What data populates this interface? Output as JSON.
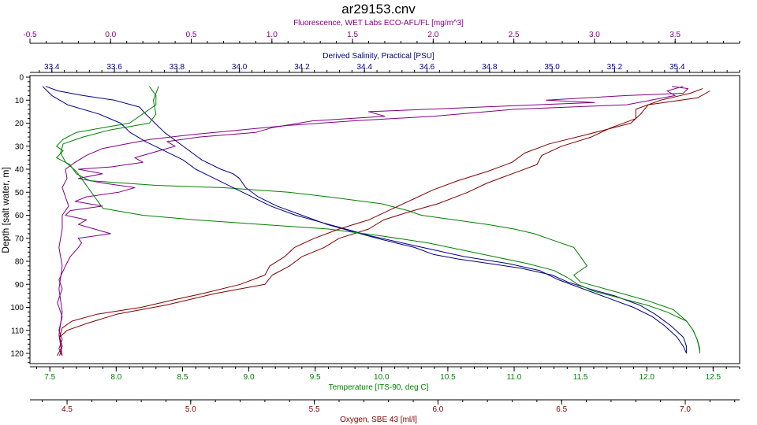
{
  "chart_data": {
    "type": "line",
    "title": "ar29153.cnv",
    "plot_frame": true,
    "depth_axis": {
      "label": "Depth [salt water, m]",
      "range": [
        0,
        125
      ],
      "inverted": true,
      "ticks": [
        0,
        10,
        20,
        30,
        40,
        50,
        60,
        70,
        80,
        90,
        100,
        110,
        120
      ],
      "color": "#000000"
    },
    "axes": [
      {
        "id": "fluorescence",
        "label": "Fluorescence, WET Labs ECO-AFL/FL [mg/m^3]",
        "position": "top-outer",
        "range": [
          -0.5,
          3.9
        ],
        "ticks": [
          -0.5,
          0.0,
          0.5,
          1.0,
          1.5,
          2.0,
          2.5,
          3.0,
          3.5
        ],
        "tick_labels": [
          "-0.5",
          "0.0",
          "0.5",
          "1.0",
          "1.5",
          "2.0",
          "2.5",
          "3.0",
          "3.5"
        ],
        "color": "#800080"
      },
      {
        "id": "salinity",
        "label": "Derived Salinity, Practical [PSU]",
        "position": "top-inner",
        "range": [
          33.33,
          35.6
        ],
        "ticks": [
          33.4,
          33.6,
          33.8,
          34.0,
          34.2,
          34.4,
          34.6,
          34.8,
          35.0,
          35.2,
          35.4
        ],
        "tick_labels": [
          "33.4",
          "33.6",
          "33.8",
          "34.0",
          "34.2",
          "34.4",
          "34.6",
          "34.8",
          "35.0",
          "35.2",
          "35.4"
        ],
        "color": "#000080"
      },
      {
        "id": "temperature",
        "label": "Temperature [ITS-90, deg C]",
        "position": "bottom-inner",
        "range": [
          7.35,
          12.7
        ],
        "ticks": [
          7.5,
          8.0,
          8.5,
          9.0,
          9.5,
          10.0,
          10.5,
          11.0,
          11.5,
          12.0,
          12.5
        ],
        "tick_labels": [
          "7.5",
          "8.0",
          "8.5",
          "9.0",
          "9.5",
          "10.0",
          "10.5",
          "11.0",
          "11.5",
          "12.0",
          "12.5"
        ],
        "color": "#008000"
      },
      {
        "id": "oxygen",
        "label": "Oxygen, SBE 43 [ml/l]",
        "position": "bottom-outer",
        "range": [
          4.35,
          7.22
        ],
        "ticks": [
          4.5,
          5.0,
          5.5,
          6.0,
          6.5,
          7.0
        ],
        "tick_labels": [
          "4.5",
          "5.0",
          "5.5",
          "6.0",
          "6.5",
          "7.0"
        ],
        "color": "#800000"
      }
    ],
    "series": [
      {
        "axis": "fluorescence",
        "color": "#800080",
        "points": [
          [
            3.48,
            4
          ],
          [
            3.58,
            5
          ],
          [
            3.55,
            7
          ],
          [
            3.2,
            8
          ],
          [
            2.7,
            10
          ],
          [
            3.0,
            11
          ],
          [
            2.3,
            13
          ],
          [
            1.6,
            15
          ],
          [
            1.7,
            17
          ],
          [
            1.25,
            19
          ],
          [
            1.0,
            22
          ],
          [
            0.9,
            24
          ],
          [
            0.55,
            26
          ],
          [
            0.35,
            28
          ],
          [
            0.4,
            30
          ],
          [
            0.3,
            32
          ],
          [
            0.15,
            35
          ],
          [
            0.2,
            37
          ],
          [
            0.0,
            39
          ],
          [
            -0.2,
            40
          ],
          [
            -0.05,
            42
          ],
          [
            -0.2,
            44
          ],
          [
            -0.05,
            46
          ],
          [
            0.15,
            48
          ],
          [
            0.05,
            50
          ],
          [
            -0.15,
            52
          ],
          [
            -0.22,
            54
          ],
          [
            -0.05,
            56
          ],
          [
            -0.25,
            58
          ],
          [
            -0.28,
            60
          ],
          [
            -0.15,
            62
          ],
          [
            -0.2,
            64
          ],
          [
            -0.1,
            66
          ],
          [
            0.0,
            68
          ],
          [
            -0.2,
            70
          ],
          [
            -0.18,
            72
          ],
          [
            -0.2,
            74
          ],
          [
            -0.25,
            78
          ],
          [
            -0.28,
            82
          ],
          [
            -0.32,
            88
          ],
          [
            -0.3,
            92
          ],
          [
            -0.33,
            98
          ],
          [
            -0.3,
            104
          ],
          [
            -0.32,
            110
          ],
          [
            -0.3,
            114
          ],
          [
            -0.32,
            118
          ],
          [
            -0.3,
            121
          ]
        ]
      },
      {
        "axis": "salinity",
        "color": "#000080",
        "points": [
          [
            33.38,
            4
          ],
          [
            33.42,
            6
          ],
          [
            33.5,
            8
          ],
          [
            33.6,
            10
          ],
          [
            33.68,
            13
          ],
          [
            33.7,
            16
          ],
          [
            33.73,
            20
          ],
          [
            33.76,
            24
          ],
          [
            33.8,
            28
          ],
          [
            33.84,
            32
          ],
          [
            33.88,
            36
          ],
          [
            33.94,
            40
          ],
          [
            33.98,
            42
          ],
          [
            34.0,
            44
          ],
          [
            34.02,
            48
          ],
          [
            34.06,
            52
          ],
          [
            34.12,
            56
          ],
          [
            34.2,
            60
          ],
          [
            34.28,
            64
          ],
          [
            34.36,
            67
          ],
          [
            34.44,
            70
          ],
          [
            34.5,
            72
          ],
          [
            34.56,
            74
          ],
          [
            34.62,
            77
          ],
          [
            34.7,
            79
          ],
          [
            34.8,
            81
          ],
          [
            34.9,
            83
          ],
          [
            35.0,
            86
          ],
          [
            35.05,
            89
          ],
          [
            35.12,
            92
          ],
          [
            35.2,
            95
          ],
          [
            35.28,
            99
          ],
          [
            35.33,
            103
          ],
          [
            35.38,
            108
          ],
          [
            35.42,
            113
          ],
          [
            35.43,
            117
          ],
          [
            35.43,
            120
          ]
        ]
      },
      {
        "axis": "temperature",
        "color": "#008000",
        "points": [
          [
            8.25,
            4
          ],
          [
            8.3,
            8
          ],
          [
            8.3,
            12
          ],
          [
            8.2,
            16
          ],
          [
            8.1,
            20
          ],
          [
            7.9,
            22
          ],
          [
            7.7,
            24
          ],
          [
            7.6,
            27
          ],
          [
            7.55,
            30
          ],
          [
            7.6,
            32
          ],
          [
            7.55,
            35
          ],
          [
            7.65,
            38
          ],
          [
            7.7,
            42
          ],
          [
            7.8,
            45
          ],
          [
            8.3,
            47
          ],
          [
            8.8,
            48
          ],
          [
            9.3,
            50
          ],
          [
            9.6,
            52
          ],
          [
            10.0,
            55
          ],
          [
            10.2,
            58
          ],
          [
            10.3,
            60
          ],
          [
            10.55,
            62
          ],
          [
            10.8,
            64
          ],
          [
            11.0,
            66
          ],
          [
            11.15,
            68
          ],
          [
            11.3,
            71
          ],
          [
            11.45,
            74
          ],
          [
            11.5,
            78
          ],
          [
            11.55,
            82
          ],
          [
            11.45,
            86
          ],
          [
            11.5,
            89
          ],
          [
            11.75,
            93
          ],
          [
            12.0,
            97
          ],
          [
            12.2,
            101
          ],
          [
            12.3,
            106
          ],
          [
            12.35,
            110
          ],
          [
            12.38,
            114
          ],
          [
            12.4,
            118
          ],
          [
            12.4,
            120
          ]
        ]
      },
      {
        "axis": "oxygen",
        "color": "#800000",
        "points": [
          [
            7.07,
            5
          ],
          [
            7.02,
            7
          ],
          [
            6.9,
            10
          ],
          [
            6.8,
            14
          ],
          [
            6.8,
            18
          ],
          [
            6.7,
            22
          ],
          [
            6.62,
            26
          ],
          [
            6.5,
            30
          ],
          [
            6.42,
            34
          ],
          [
            6.4,
            38
          ],
          [
            6.3,
            42
          ],
          [
            6.2,
            46
          ],
          [
            6.12,
            50
          ],
          [
            6.0,
            55
          ],
          [
            5.9,
            58
          ],
          [
            5.78,
            62
          ],
          [
            5.72,
            66
          ],
          [
            5.6,
            70
          ],
          [
            5.54,
            74
          ],
          [
            5.45,
            78
          ],
          [
            5.4,
            82
          ],
          [
            5.33,
            86
          ],
          [
            5.3,
            90
          ],
          [
            5.1,
            94
          ],
          [
            4.9,
            99
          ],
          [
            4.7,
            103
          ],
          [
            4.58,
            107
          ],
          [
            4.5,
            110
          ],
          [
            4.47,
            113
          ],
          [
            4.48,
            117
          ],
          [
            4.47,
            121
          ]
        ]
      },
      {
        "axis": "fluorescence",
        "color": "#800080",
        "points": [
          [
            3.55,
            4
          ],
          [
            3.45,
            6
          ],
          [
            3.5,
            8
          ],
          [
            3.35,
            10
          ],
          [
            3.2,
            12
          ],
          [
            2.5,
            14
          ],
          [
            2.0,
            17
          ],
          [
            1.5,
            19
          ],
          [
            1.1,
            21
          ],
          [
            0.8,
            23
          ],
          [
            0.5,
            25
          ],
          [
            0.25,
            27
          ],
          [
            0.1,
            29
          ],
          [
            -0.05,
            31
          ],
          [
            -0.15,
            34
          ],
          [
            -0.22,
            37
          ],
          [
            -0.28,
            40
          ],
          [
            -0.27,
            44
          ],
          [
            -0.3,
            48
          ],
          [
            -0.28,
            52
          ],
          [
            -0.26,
            56
          ],
          [
            -0.3,
            60
          ],
          [
            -0.3,
            66
          ],
          [
            -0.32,
            74
          ],
          [
            -0.3,
            82
          ],
          [
            -0.32,
            92
          ],
          [
            -0.3,
            102
          ],
          [
            -0.32,
            112
          ],
          [
            -0.3,
            121
          ]
        ]
      },
      {
        "axis": "salinity",
        "color": "#000080",
        "points": [
          [
            33.37,
            4
          ],
          [
            33.4,
            8
          ],
          [
            33.45,
            12
          ],
          [
            33.55,
            16
          ],
          [
            33.62,
            20
          ],
          [
            33.65,
            24
          ],
          [
            33.7,
            28
          ],
          [
            33.76,
            32
          ],
          [
            33.82,
            36
          ],
          [
            33.86,
            40
          ],
          [
            33.92,
            44
          ],
          [
            33.98,
            48
          ],
          [
            34.04,
            52
          ],
          [
            34.1,
            56
          ],
          [
            34.18,
            60
          ],
          [
            34.26,
            63
          ],
          [
            34.34,
            66
          ],
          [
            34.42,
            69
          ],
          [
            34.52,
            72
          ],
          [
            34.62,
            75
          ],
          [
            34.72,
            78
          ],
          [
            34.86,
            81
          ],
          [
            34.96,
            84
          ],
          [
            35.02,
            88
          ],
          [
            35.1,
            92
          ],
          [
            35.18,
            96
          ],
          [
            35.26,
            100
          ],
          [
            35.32,
            104
          ],
          [
            35.36,
            108
          ],
          [
            35.4,
            113
          ],
          [
            35.42,
            117
          ],
          [
            35.43,
            120
          ]
        ]
      },
      {
        "axis": "temperature",
        "color": "#008000",
        "points": [
          [
            8.32,
            4
          ],
          [
            8.28,
            10
          ],
          [
            8.3,
            16
          ],
          [
            8.25,
            20
          ],
          [
            7.95,
            23
          ],
          [
            7.75,
            26
          ],
          [
            7.6,
            29
          ],
          [
            7.58,
            33
          ],
          [
            7.62,
            37
          ],
          [
            7.7,
            41
          ],
          [
            7.75,
            45
          ],
          [
            7.8,
            49
          ],
          [
            7.85,
            53
          ],
          [
            7.9,
            57
          ],
          [
            8.2,
            60
          ],
          [
            8.6,
            62
          ],
          [
            9.1,
            64
          ],
          [
            9.6,
            66
          ],
          [
            10.0,
            69
          ],
          [
            10.35,
            72
          ],
          [
            10.6,
            75
          ],
          [
            10.85,
            78
          ],
          [
            11.1,
            81
          ],
          [
            11.3,
            84
          ],
          [
            11.4,
            87
          ],
          [
            11.48,
            90
          ],
          [
            11.6,
            93
          ],
          [
            11.8,
            96
          ],
          [
            12.0,
            99
          ],
          [
            12.15,
            102
          ],
          [
            12.3,
            106
          ],
          [
            12.35,
            110
          ],
          [
            12.38,
            114
          ],
          [
            12.4,
            119
          ]
        ]
      },
      {
        "axis": "oxygen",
        "color": "#800000",
        "points": [
          [
            7.1,
            6
          ],
          [
            7.05,
            9
          ],
          [
            6.85,
            12
          ],
          [
            6.82,
            16
          ],
          [
            6.78,
            20
          ],
          [
            6.6,
            25
          ],
          [
            6.45,
            29
          ],
          [
            6.35,
            33
          ],
          [
            6.3,
            37
          ],
          [
            6.2,
            41
          ],
          [
            6.08,
            45
          ],
          [
            5.98,
            49
          ],
          [
            5.9,
            53
          ],
          [
            5.8,
            58
          ],
          [
            5.72,
            62
          ],
          [
            5.6,
            66
          ],
          [
            5.5,
            70
          ],
          [
            5.42,
            74
          ],
          [
            5.38,
            78
          ],
          [
            5.32,
            82
          ],
          [
            5.3,
            86
          ],
          [
            5.2,
            90
          ],
          [
            5.05,
            94
          ],
          [
            4.92,
            97
          ],
          [
            4.8,
            100
          ],
          [
            4.62,
            103
          ],
          [
            4.52,
            106
          ],
          [
            4.48,
            109
          ],
          [
            4.47,
            113
          ],
          [
            4.48,
            117
          ],
          [
            4.46,
            121
          ]
        ]
      }
    ]
  }
}
